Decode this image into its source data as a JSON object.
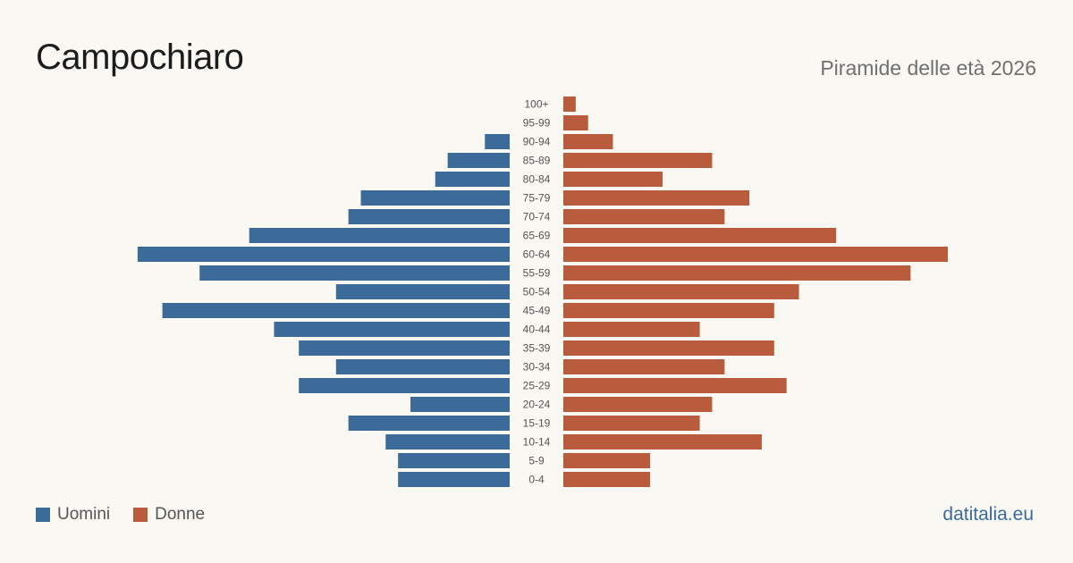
{
  "header": {
    "title": "Campochiaro",
    "subtitle": "Piramide delle età 2026"
  },
  "legend": {
    "men_label": "Uomini",
    "women_label": "Donne"
  },
  "brand": "datitalia.eu",
  "colors": {
    "men": "#3c6a99",
    "women": "#b85c3d",
    "background": "#faf8f3"
  },
  "chart_data": {
    "type": "bar",
    "orientation": "horizontal-pyramid",
    "categories": [
      "100+",
      "95-99",
      "90-94",
      "85-89",
      "80-84",
      "75-79",
      "70-74",
      "65-69",
      "60-64",
      "55-59",
      "50-54",
      "45-49",
      "40-44",
      "35-39",
      "30-34",
      "25-29",
      "20-24",
      "15-19",
      "10-14",
      "5-9",
      "0-4"
    ],
    "series": [
      {
        "name": "Uomini",
        "values": [
          0,
          0,
          2,
          5,
          6,
          12,
          13,
          21,
          30,
          25,
          14,
          28,
          19,
          17,
          14,
          17,
          8,
          13,
          10,
          9,
          9
        ]
      },
      {
        "name": "Donne",
        "values": [
          1,
          2,
          4,
          12,
          8,
          15,
          13,
          22,
          31,
          28,
          19,
          17,
          11,
          17,
          13,
          18,
          12,
          11,
          16,
          7,
          7
        ]
      }
    ],
    "xlim": [
      0,
      31
    ],
    "grid": false,
    "legend_position": "bottom-left"
  }
}
